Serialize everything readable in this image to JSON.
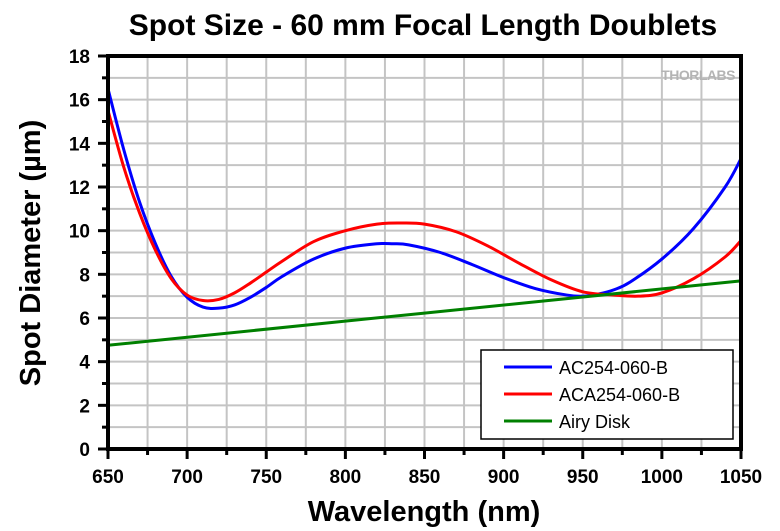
{
  "chart_data": {
    "type": "line",
    "title": "Spot Size - 60 mm Focal Length Doublets",
    "xlabel": "Wavelength (nm)",
    "ylabel": "Spot Diameter (µm)",
    "xlim": [
      650,
      1050
    ],
    "ylim": [
      0,
      18
    ],
    "xticks": [
      "650",
      "700",
      "750",
      "800",
      "850",
      "900",
      "950",
      "1000",
      "1050"
    ],
    "yticks": [
      "0",
      "2",
      "4",
      "6",
      "8",
      "10",
      "12",
      "14",
      "16",
      "18"
    ],
    "grid": true,
    "legend_position": "bottom-right",
    "watermark": "THORLABS",
    "series": [
      {
        "name": "AC254-060-B",
        "color": "#0000ff",
        "x": [
          650,
          660,
          670,
          680,
          690,
          700,
          710,
          720,
          730,
          740,
          750,
          760,
          780,
          800,
          820,
          830,
          840,
          860,
          880,
          900,
          920,
          940,
          950,
          960,
          970,
          980,
          1000,
          1020,
          1040,
          1050
        ],
        "y": [
          16.5,
          13.7,
          11.3,
          9.4,
          7.9,
          6.95,
          6.5,
          6.45,
          6.6,
          6.95,
          7.4,
          7.9,
          8.7,
          9.2,
          9.4,
          9.4,
          9.35,
          9.0,
          8.45,
          7.85,
          7.35,
          7.05,
          7.0,
          7.1,
          7.3,
          7.65,
          8.7,
          10.1,
          12.0,
          13.3
        ]
      },
      {
        "name": "ACA254-060-B",
        "color": "#ff0000",
        "x": [
          650,
          660,
          670,
          680,
          690,
          700,
          710,
          720,
          730,
          740,
          750,
          760,
          780,
          800,
          820,
          835,
          850,
          870,
          890,
          910,
          930,
          950,
          970,
          985,
          1000,
          1020,
          1040,
          1050
        ],
        "y": [
          15.5,
          12.9,
          10.8,
          9.1,
          7.8,
          7.05,
          6.8,
          6.85,
          7.15,
          7.6,
          8.1,
          8.6,
          9.5,
          10.0,
          10.3,
          10.35,
          10.3,
          9.95,
          9.3,
          8.5,
          7.75,
          7.2,
          7.05,
          7.0,
          7.15,
          7.8,
          8.8,
          9.55
        ]
      },
      {
        "name": "Airy Disk",
        "color": "#008000",
        "x": [
          650,
          1050
        ],
        "y": [
          4.75,
          7.7
        ]
      }
    ]
  }
}
